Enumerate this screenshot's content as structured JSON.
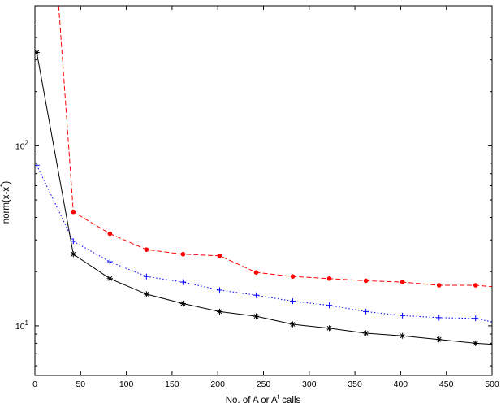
{
  "chart_data": {
    "type": "line",
    "title": "",
    "xlabel": "No. of A or A",
    "xlabel_sup": "t",
    "xlabel_suffix": " calls",
    "ylabel": "norm(x-x",
    "ylabel_sup": "*",
    "ylabel_suffix": ")",
    "xlim": [
      0,
      500
    ],
    "ylim": [
      5.3,
      600
    ],
    "yscale": "log",
    "grid": false,
    "x_ticks": [
      0,
      50,
      100,
      150,
      200,
      250,
      300,
      350,
      400,
      450,
      500
    ],
    "x_tick_labels": [
      "0",
      "50",
      "100",
      "150",
      "200",
      "250",
      "300",
      "350",
      "400",
      "450",
      "500"
    ],
    "y_major_ticks": [
      10,
      100
    ],
    "y_tick_labels": [
      "10",
      "10"
    ],
    "y_tick_sup": "1|2",
    "series": [
      {
        "color": "#ff0000",
        "line_style": "dashed",
        "marker": "dot",
        "x": [
          26,
          42,
          82,
          122,
          162,
          202,
          242,
          282,
          322,
          362,
          402,
          442,
          482,
          500
        ],
        "y": [
          600,
          43,
          32.5,
          26.5,
          25,
          24.5,
          19.8,
          18.8,
          18.3,
          17.8,
          17.5,
          16.8,
          16.8,
          16.5
        ],
        "marker_x": [
          42,
          82,
          122,
          162,
          202,
          242,
          282,
          322,
          362,
          402,
          442,
          482
        ],
        "marker_y": [
          43,
          32.5,
          26.5,
          25,
          24.5,
          19.8,
          18.8,
          18.3,
          17.8,
          17.5,
          16.8,
          16.8
        ]
      },
      {
        "color": "#0000ff",
        "line_style": "dotted",
        "marker": "plus",
        "x": [
          2,
          42,
          82,
          122,
          162,
          202,
          242,
          282,
          322,
          362,
          402,
          442,
          482,
          500
        ],
        "y": [
          78,
          29.5,
          22.7,
          18.8,
          17.5,
          15.8,
          14.8,
          13.7,
          13,
          12,
          11.4,
          11.1,
          11,
          10.5
        ],
        "marker_x": [
          2,
          42,
          82,
          122,
          162,
          202,
          242,
          282,
          322,
          362,
          402,
          442,
          482
        ],
        "marker_y": [
          78,
          29.5,
          22.7,
          18.8,
          17.5,
          15.8,
          14.8,
          13.7,
          13,
          12,
          11.4,
          11.1,
          11
        ]
      },
      {
        "color": "#000000",
        "line_style": "solid",
        "marker": "star",
        "x": [
          2,
          42,
          82,
          122,
          162,
          202,
          242,
          282,
          322,
          362,
          402,
          442,
          482,
          500
        ],
        "y": [
          330,
          25,
          18.3,
          15,
          13.3,
          12,
          11.3,
          10.2,
          9.7,
          9.1,
          8.8,
          8.4,
          8,
          7.9
        ],
        "marker_x": [
          2,
          42,
          82,
          122,
          162,
          202,
          242,
          282,
          322,
          362,
          402,
          442,
          482
        ],
        "marker_y": [
          330,
          25,
          18.3,
          15,
          13.3,
          12,
          11.3,
          10.2,
          9.7,
          9.1,
          8.8,
          8.4,
          8
        ]
      }
    ]
  }
}
